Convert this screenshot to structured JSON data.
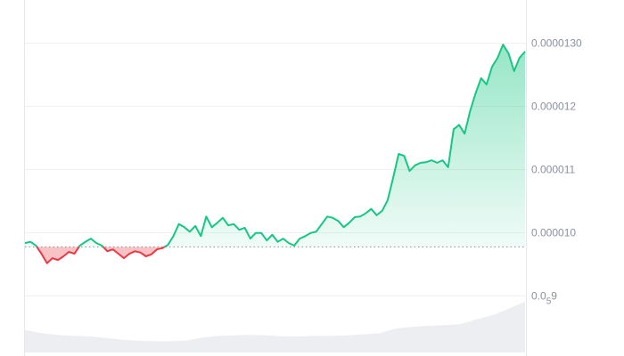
{
  "chart_data": {
    "type": "area",
    "title": "",
    "xlabel": "",
    "ylabel": "",
    "ylim": [
      8.8e-06,
      1.36e-05
    ],
    "y_ticks": [
      {
        "value": 1.3e-05,
        "label": "0.0000130"
      },
      {
        "value": 1.2e-05,
        "label": "0.000012"
      },
      {
        "value": 1.1e-05,
        "label": "0.000011"
      },
      {
        "value": 1e-05,
        "label": "0.000010"
      },
      {
        "value": 9e-06,
        "label": "0.0",
        "sub": "5",
        "suffix": "9"
      }
    ],
    "baseline": 9.77e-06,
    "grid": true,
    "colors": {
      "up": "#16c784",
      "down": "#ea3943",
      "grid": "#eff1f4",
      "volume": "#eceef2",
      "baseline": "#8a8f9c"
    },
    "values": [
      9.83,
      9.85,
      9.79,
      9.66,
      9.51,
      9.59,
      9.56,
      9.62,
      9.69,
      9.66,
      9.79,
      9.85,
      9.9,
      9.83,
      9.79,
      9.7,
      9.73,
      9.66,
      9.59,
      9.66,
      9.7,
      9.68,
      9.62,
      9.65,
      9.73,
      9.75,
      9.8,
      9.94,
      10.13,
      10.08,
      10.01,
      10.1,
      9.94,
      10.25,
      10.08,
      10.15,
      10.23,
      10.11,
      10.13,
      10.04,
      10.07,
      9.9,
      9.99,
      9.99,
      9.87,
      9.96,
      9.85,
      9.9,
      9.83,
      9.79,
      9.9,
      9.94,
      9.99,
      10.01,
      10.13,
      10.25,
      10.23,
      10.18,
      10.08,
      10.15,
      10.24,
      10.25,
      10.3,
      10.37,
      10.27,
      10.34,
      10.51,
      10.86,
      11.24,
      11.21,
      10.97,
      11.06,
      11.1,
      11.11,
      11.14,
      11.1,
      11.14,
      11.03,
      11.63,
      11.7,
      11.56,
      11.92,
      12.2,
      12.44,
      12.34,
      12.62,
      12.76,
      12.97,
      12.83,
      12.55,
      12.76,
      12.86
    ],
    "values_unit_scale": 1e-06,
    "volume_relative": [
      0.42,
      0.36,
      0.33,
      0.31,
      0.3,
      0.27,
      0.24,
      0.22,
      0.21,
      0.21,
      0.22,
      0.28,
      0.31,
      0.32,
      0.33,
      0.32,
      0.3,
      0.3,
      0.31,
      0.31,
      0.32,
      0.34,
      0.36,
      0.45,
      0.48,
      0.5,
      0.51,
      0.53,
      0.62,
      0.7,
      0.82,
      0.95
    ]
  }
}
